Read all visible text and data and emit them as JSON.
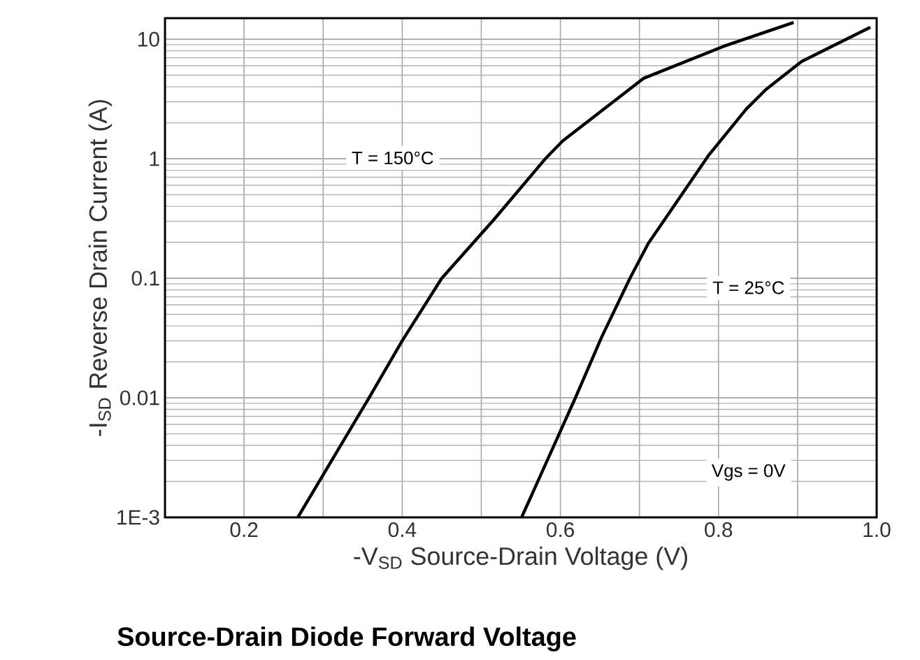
{
  "chart_data": {
    "type": "line",
    "title": "Source-Drain Diode Forward Voltage",
    "xlabel": "-V$_{SD}$ Source-Drain Voltage (V)",
    "ylabel": "-I$_{SD}$ Reverse Drain Current (A)",
    "log": "y",
    "grid": true,
    "line_style": "solid",
    "xlim": [
      0.1,
      1.0
    ],
    "ylim": [
      0.001,
      15
    ],
    "xticks": [
      {
        "value": 0.2,
        "label": "0.2"
      },
      {
        "value": 0.3,
        "label": null
      },
      {
        "value": 0.4,
        "label": "0.4"
      },
      {
        "value": 0.5,
        "label": null
      },
      {
        "value": 0.6,
        "label": "0.6"
      },
      {
        "value": 0.7,
        "label": null
      },
      {
        "value": 0.8,
        "label": "0.8"
      },
      {
        "value": 0.9,
        "label": null
      },
      {
        "value": 1.0,
        "label": "1.0"
      }
    ],
    "yticks": [
      {
        "value": 0.001,
        "label": "1E-3"
      },
      0.01,
      0.1,
      1,
      10
    ],
    "series": [
      {
        "color": "#000000",
        "x": [
          0.268,
          0.358,
          0.4,
          0.45,
          0.516,
          0.581,
          0.603,
          0.705,
          0.806,
          0.895
        ],
        "values": [
          0.001,
          0.01,
          0.03,
          0.1,
          0.31,
          1.0,
          1.41,
          4.7,
          8.7,
          13.8
        ]
      },
      {
        "color": "#000000",
        "x": [
          0.551,
          0.619,
          0.652,
          0.688,
          0.711,
          0.788,
          0.835,
          0.86,
          0.905,
          0.992
        ],
        "values": [
          0.001,
          0.01,
          0.032,
          0.1,
          0.195,
          1.08,
          2.6,
          3.8,
          6.5,
          12.6
        ]
      }
    ],
    "annotations": [
      "T = 150°C",
      "T = 25°C",
      "Vgs = 0V"
    ]
  }
}
